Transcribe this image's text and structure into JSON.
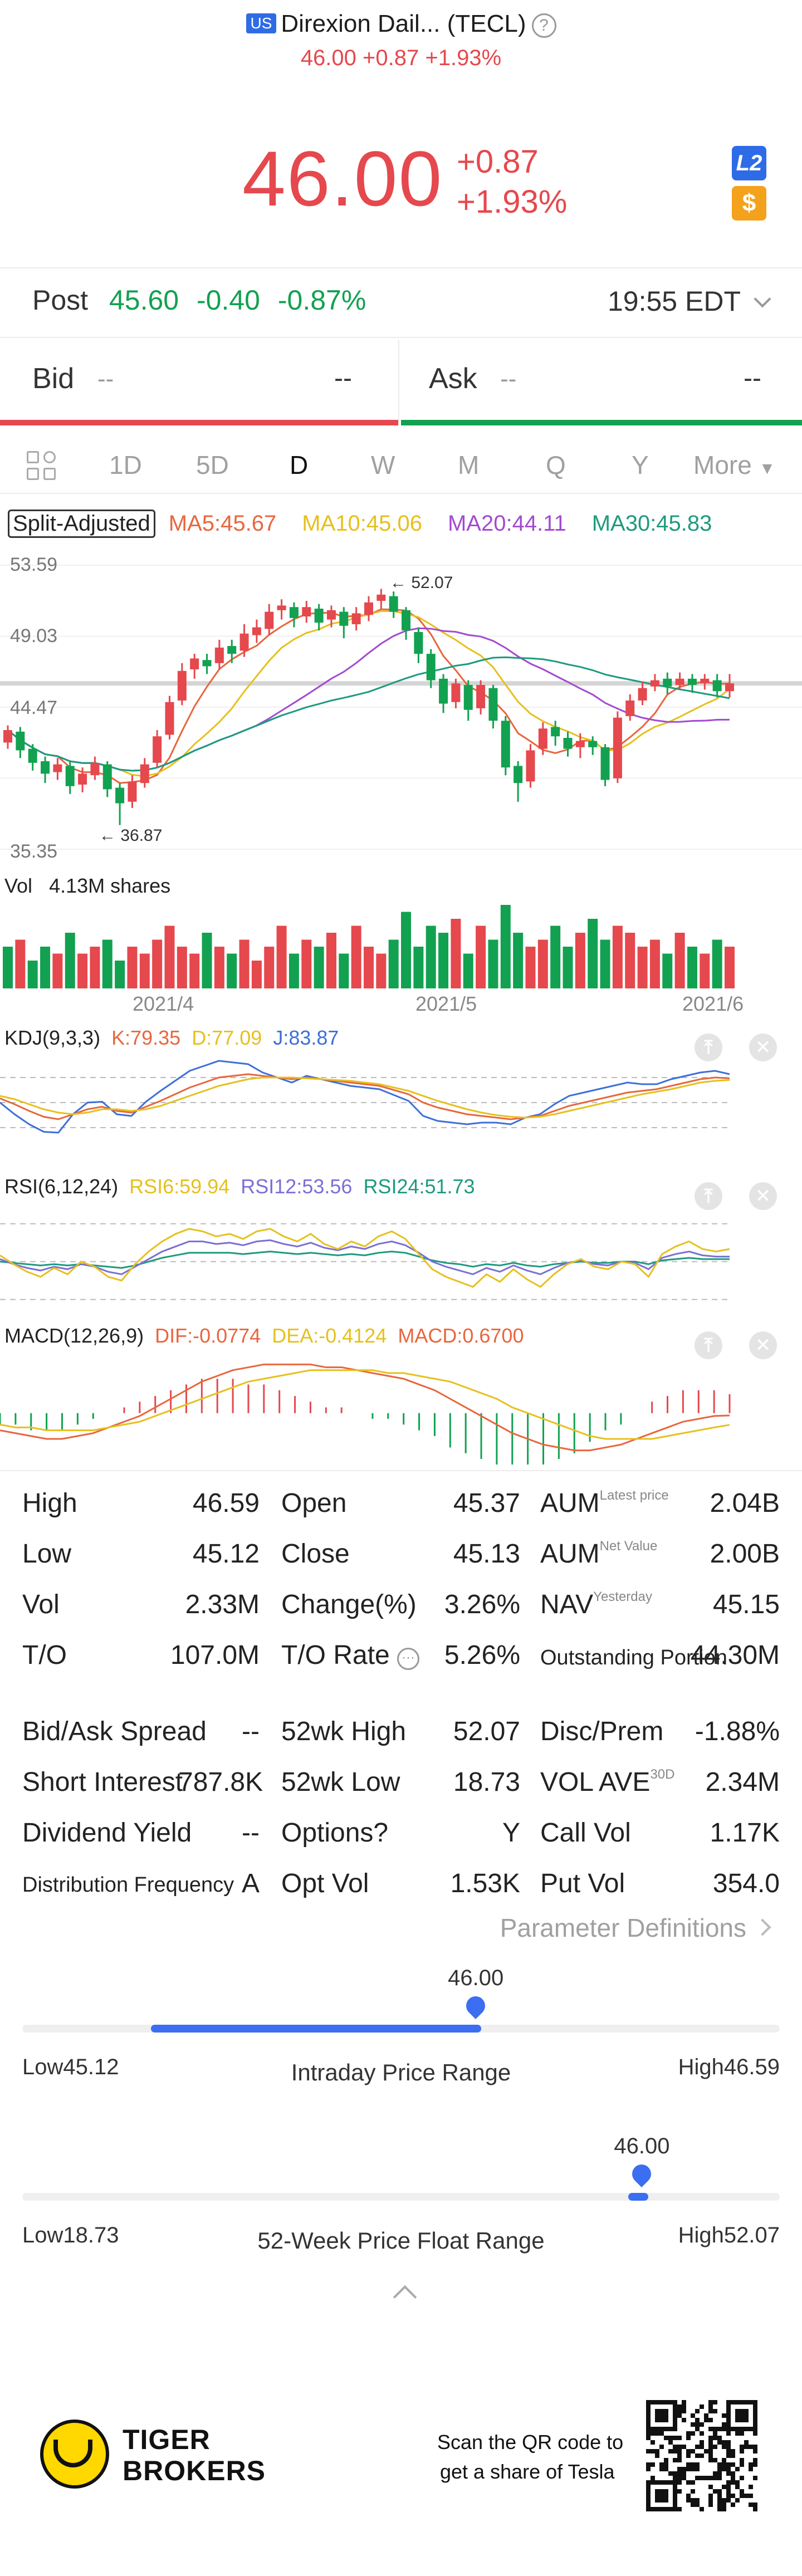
{
  "header": {
    "market_badge": "US",
    "title": "Direxion Dail... (TECL)",
    "help_icon": "question-circle-icon",
    "sub_price": "46.00",
    "sub_change": "+0.87",
    "sub_change_pct": "+1.93%"
  },
  "quote": {
    "price": "46.00",
    "change": "+0.87",
    "change_pct": "+1.93%",
    "l2_badge": "L2",
    "currency_badge": "$"
  },
  "post_market": {
    "label": "Post",
    "price": "45.60",
    "change": "-0.40",
    "change_pct": "-0.87%",
    "time": "19:55 EDT"
  },
  "bid_ask": {
    "bid_label": "Bid",
    "bid_placeholder": "--",
    "bid_value": "--",
    "ask_label": "Ask",
    "ask_placeholder": "--",
    "ask_value": "--"
  },
  "tabs": [
    "1D",
    "5D",
    "D",
    "W",
    "M",
    "Q",
    "Y",
    "More"
  ],
  "active_tab": "D",
  "ma_row": {
    "split_label": "Split-Adjusted",
    "ma5": "MA5:45.67",
    "ma10": "MA10:45.06",
    "ma20": "MA20:44.11",
    "ma30": "MA30:45.83",
    "colors": {
      "ma5": "#e8663d",
      "ma10": "#e6c01d",
      "ma20": "#a24bd0",
      "ma30": "#1d9a7e"
    }
  },
  "chart_data": [
    {
      "type": "candlestick",
      "y_labels": [
        "53.59",
        "49.03",
        "44.47",
        "35.35"
      ],
      "ylim": [
        35.35,
        53.59
      ],
      "high_annotation": "52.07",
      "low_annotation": "36.87",
      "x_labels": [
        "2021/4",
        "2021/5",
        "2021/6"
      ],
      "candles": [
        [
          42.2,
          43.0,
          41.8,
          43.3
        ],
        [
          42.9,
          41.7,
          41.2,
          43.2
        ],
        [
          41.8,
          40.9,
          40.4,
          42.1
        ],
        [
          41.0,
          40.2,
          39.6,
          41.3
        ],
        [
          40.3,
          40.8,
          39.8,
          41.2
        ],
        [
          40.7,
          39.4,
          38.9,
          41.0
        ],
        [
          39.5,
          40.2,
          39.0,
          40.6
        ],
        [
          40.1,
          40.9,
          39.8,
          41.3
        ],
        [
          40.8,
          39.2,
          38.7,
          41.0
        ],
        [
          39.3,
          38.3,
          36.9,
          39.6
        ],
        [
          38.4,
          39.7,
          38.0,
          40.1
        ],
        [
          39.6,
          40.8,
          39.3,
          41.2
        ],
        [
          40.9,
          42.6,
          40.6,
          43.0
        ],
        [
          42.7,
          44.8,
          42.4,
          45.2
        ],
        [
          44.9,
          46.8,
          44.6,
          47.3
        ],
        [
          46.9,
          47.6,
          46.3,
          47.9
        ],
        [
          47.5,
          47.1,
          46.6,
          47.9
        ],
        [
          47.3,
          48.3,
          46.9,
          48.8
        ],
        [
          48.4,
          47.9,
          47.3,
          48.8
        ],
        [
          48.1,
          49.2,
          47.7,
          49.8
        ],
        [
          49.1,
          49.6,
          48.6,
          50.1
        ],
        [
          49.5,
          50.6,
          49.1,
          51.1
        ],
        [
          50.7,
          51.0,
          50.1,
          51.4
        ],
        [
          50.9,
          50.2,
          49.6,
          51.2
        ],
        [
          50.3,
          50.9,
          49.9,
          51.3
        ],
        [
          50.8,
          49.9,
          49.4,
          51.1
        ],
        [
          50.1,
          50.7,
          49.6,
          51.0
        ],
        [
          50.6,
          49.7,
          48.9,
          50.9
        ],
        [
          49.8,
          50.5,
          49.4,
          50.9
        ],
        [
          50.4,
          51.2,
          50.0,
          51.6
        ],
        [
          51.3,
          51.7,
          50.8,
          52.07
        ],
        [
          51.6,
          50.6,
          50.2,
          51.9
        ],
        [
          50.7,
          49.4,
          48.8,
          50.9
        ],
        [
          49.3,
          47.9,
          47.3,
          49.6
        ],
        [
          47.9,
          46.2,
          45.7,
          48.2
        ],
        [
          46.3,
          44.7,
          44.1,
          46.6
        ],
        [
          44.8,
          46.0,
          44.4,
          46.3
        ],
        [
          45.9,
          44.3,
          43.6,
          46.2
        ],
        [
          44.4,
          45.9,
          44.0,
          46.2
        ],
        [
          45.7,
          43.6,
          43.1,
          45.9
        ],
        [
          43.6,
          40.6,
          40.1,
          43.9
        ],
        [
          40.7,
          39.6,
          38.4,
          41.0
        ],
        [
          39.7,
          41.7,
          39.3,
          42.1
        ],
        [
          41.8,
          43.1,
          41.4,
          43.5
        ],
        [
          43.2,
          42.6,
          42.0,
          43.6
        ],
        [
          42.5,
          41.8,
          41.3,
          42.9
        ],
        [
          41.9,
          42.3,
          41.2,
          42.8
        ],
        [
          42.3,
          41.9,
          41.4,
          42.6
        ],
        [
          41.9,
          39.8,
          39.4,
          42.1
        ],
        [
          39.9,
          43.8,
          39.6,
          44.2
        ],
        [
          43.9,
          44.9,
          43.6,
          45.3
        ],
        [
          44.9,
          45.7,
          44.6,
          46.1
        ],
        [
          45.8,
          46.2,
          45.5,
          46.6
        ],
        [
          46.3,
          45.8,
          45.3,
          46.7
        ],
        [
          45.9,
          46.3,
          45.6,
          46.7
        ],
        [
          46.3,
          45.9,
          45.4,
          46.6
        ],
        [
          46.0,
          46.3,
          45.6,
          46.6
        ],
        [
          46.2,
          45.5,
          45.1,
          46.6
        ],
        [
          45.5,
          46.0,
          45.1,
          46.6
        ]
      ]
    },
    {
      "type": "bar",
      "title": "Vol",
      "value_label": "4.13M shares",
      "values": [
        6,
        7,
        4,
        6,
        5,
        8,
        5,
        6,
        7,
        4,
        6,
        5,
        7,
        9,
        6,
        5,
        8,
        6,
        5,
        7,
        4,
        6,
        9,
        5,
        7,
        6,
        8,
        5,
        9,
        6,
        5,
        7,
        11,
        6,
        9,
        8,
        10,
        5,
        9,
        7,
        12,
        8,
        6,
        7,
        9,
        6,
        8,
        10,
        7,
        9,
        8,
        6,
        7,
        5,
        8,
        6,
        5,
        7,
        6
      ],
      "up": [
        0,
        1,
        0,
        0,
        1,
        0,
        1,
        1,
        0,
        0,
        1,
        1,
        1,
        1,
        1,
        1,
        0,
        1,
        0,
        1,
        1,
        1,
        1,
        0,
        1,
        0,
        1,
        0,
        1,
        1,
        1,
        0,
        0,
        0,
        0,
        0,
        1,
        0,
        1,
        0,
        0,
        0,
        1,
        1,
        0,
        0,
        1,
        0,
        0,
        1,
        1,
        1,
        1,
        0,
        1,
        0,
        1,
        0,
        1
      ]
    },
    {
      "type": "line",
      "title": "KDJ(9,3,3)",
      "k_label": "K:79.35",
      "d_label": "D:77.09",
      "j_label": "J:83.87",
      "colors": {
        "k": "#e8663d",
        "d": "#e6c01d",
        "j": "#3e6fd8"
      },
      "k": [
        55,
        48,
        40,
        33,
        30,
        36,
        42,
        45,
        40,
        38,
        45,
        52,
        60,
        68,
        74,
        80,
        82,
        84,
        82,
        80,
        78,
        80,
        78,
        76,
        74,
        72,
        70,
        65,
        60,
        50,
        44,
        40,
        36,
        34,
        32,
        30,
        32,
        34,
        40,
        46,
        50,
        54,
        58,
        62,
        64,
        66,
        70,
        74,
        78,
        80,
        79
      ],
      "d": [
        58,
        54,
        48,
        42,
        38,
        36,
        38,
        42,
        42,
        40,
        42,
        46,
        52,
        58,
        64,
        70,
        74,
        78,
        80,
        80,
        80,
        79,
        78,
        77,
        76,
        74,
        72,
        68,
        64,
        58,
        52,
        47,
        42,
        38,
        35,
        33,
        32,
        33,
        36,
        40,
        44,
        48,
        52,
        56,
        60,
        63,
        66,
        70,
        74,
        76,
        77
      ],
      "j": [
        50,
        36,
        24,
        15,
        14,
        36,
        50,
        51,
        36,
        34,
        51,
        64,
        76,
        88,
        94,
        100,
        98,
        96,
        86,
        80,
        74,
        82,
        78,
        74,
        70,
        68,
        66,
        59,
        52,
        34,
        28,
        26,
        24,
        26,
        26,
        24,
        32,
        36,
        48,
        58,
        62,
        66,
        70,
        74,
        72,
        72,
        78,
        82,
        86,
        88,
        84
      ]
    },
    {
      "type": "line",
      "title": "RSI(6,12,24)",
      "rsi6_label": "RSI6:59.94",
      "rsi12_label": "RSI12:53.56",
      "rsi24_label": "RSI24:51.73",
      "colors": {
        "rsi6": "#e6c01d",
        "rsi12": "#7b6fd6",
        "rsi24": "#1d9a7e"
      },
      "rsi6": [
        55,
        48,
        42,
        38,
        45,
        40,
        50,
        46,
        38,
        35,
        48,
        58,
        66,
        72,
        76,
        74,
        70,
        72,
        68,
        74,
        76,
        70,
        66,
        72,
        64,
        60,
        66,
        62,
        70,
        74,
        68,
        56,
        44,
        38,
        34,
        30,
        40,
        34,
        44,
        36,
        30,
        40,
        48,
        52,
        46,
        44,
        50,
        48,
        38,
        56,
        62,
        66,
        60,
        58,
        60
      ],
      "rsi12": [
        52,
        48,
        45,
        43,
        46,
        44,
        48,
        46,
        42,
        40,
        46,
        52,
        58,
        62,
        66,
        66,
        64,
        65,
        63,
        66,
        67,
        64,
        62,
        65,
        61,
        59,
        62,
        60,
        64,
        66,
        63,
        57,
        50,
        46,
        43,
        40,
        45,
        42,
        47,
        43,
        40,
        45,
        49,
        51,
        48,
        47,
        50,
        49,
        44,
        53,
        56,
        58,
        55,
        54,
        54
      ],
      "rsi24": [
        50,
        49,
        48,
        47,
        48,
        47,
        48,
        47,
        46,
        45,
        47,
        50,
        53,
        55,
        57,
        57,
        57,
        57,
        56,
        57,
        58,
        57,
        56,
        57,
        56,
        55,
        56,
        55,
        57,
        58,
        57,
        54,
        51,
        49,
        48,
        46,
        48,
        47,
        49,
        47,
        46,
        48,
        49,
        50,
        49,
        49,
        50,
        50,
        48,
        51,
        52,
        53,
        52,
        52,
        52
      ]
    },
    {
      "type": "bar+line",
      "title": "MACD(12,26,9)",
      "dif_label": "DIF:-0.0774",
      "dea_label": "DEA:-0.4124",
      "macd_label": "MACD:0.6700",
      "colors": {
        "dif": "#e8663d",
        "dea": "#e6c01d",
        "macd": "#e8663d"
      },
      "dif": [
        -0.6,
        -0.7,
        -0.8,
        -0.9,
        -0.9,
        -0.8,
        -0.7,
        -0.5,
        -0.3,
        -0.1,
        0.2,
        0.5,
        0.8,
        1.1,
        1.3,
        1.5,
        1.6,
        1.7,
        1.7,
        1.7,
        1.7,
        1.6,
        1.6,
        1.5,
        1.4,
        1.3,
        1.2,
        1.0,
        0.8,
        0.5,
        0.2,
        -0.1,
        -0.4,
        -0.7,
        -0.9,
        -1.1,
        -1.2,
        -1.3,
        -1.3,
        -1.2,
        -1.1,
        -0.9,
        -0.7,
        -0.5,
        -0.3,
        -0.2,
        -0.1,
        -0.08
      ],
      "dea": [
        -0.4,
        -0.5,
        -0.5,
        -0.6,
        -0.6,
        -0.6,
        -0.6,
        -0.5,
        -0.4,
        -0.3,
        -0.1,
        0.1,
        0.3,
        0.5,
        0.7,
        0.9,
        1.1,
        1.2,
        1.3,
        1.4,
        1.5,
        1.5,
        1.5,
        1.5,
        1.5,
        1.4,
        1.4,
        1.3,
        1.2,
        1.1,
        0.9,
        0.7,
        0.5,
        0.2,
        0.0,
        -0.2,
        -0.4,
        -0.6,
        -0.8,
        -0.9,
        -0.9,
        -0.9,
        -0.9,
        -0.8,
        -0.7,
        -0.6,
        -0.5,
        -0.41
      ]
    }
  ],
  "kdj_label": "KDJ(9,3,3)",
  "stats": {
    "high_l": "High",
    "high_v": "46.59",
    "open_l": "Open",
    "open_v": "45.37",
    "aum_l": "AUM",
    "aum_sup": "Latest price",
    "aum_v": "2.04B",
    "low_l": "Low",
    "low_v": "45.12",
    "close_l": "Close",
    "close_v": "45.13",
    "aum2_l": "AUM",
    "aum2_sup": "Net Value",
    "aum2_v": "2.00B",
    "vol_l": "Vol",
    "vol_v": "2.33M",
    "chg_l": "Change(%)",
    "chg_v": "3.26%",
    "nav_l": "NAV",
    "nav_sup": "Yesterday",
    "nav_v": "45.15",
    "to_l": "T/O",
    "to_v": "107.0M",
    "torate_l": "T/O Rate",
    "torate_v": "5.26%",
    "outst_l": "Outstanding Portion",
    "outst_v": "44.30M",
    "spread_l": "Bid/Ask Spread",
    "spread_v": "--",
    "wkhigh_l": "52wk High",
    "wkhigh_v": "52.07",
    "disc_l": "Disc/Prem",
    "disc_v": "-1.88%",
    "short_l": "Short Interest",
    "short_v": "787.8K",
    "wklow_l": "52wk Low",
    "wklow_v": "18.73",
    "volave_l": "VOL AVE",
    "volave_sup": "30D",
    "volave_v": "2.34M",
    "div_l": "Dividend Yield",
    "div_v": "--",
    "opt_l": "Options?",
    "opt_v": "Y",
    "callvol_l": "Call Vol",
    "callvol_v": "1.17K",
    "distfreq_l": "Distribution Frequency",
    "distfreq_v": "A",
    "optvol_l": "Opt Vol",
    "optvol_v": "1.53K",
    "putvol_l": "Put Vol",
    "putvol_v": "354.0"
  },
  "param_def": "Parameter Definitions",
  "intraday": {
    "current": "46.00",
    "low_label": "Low45.12",
    "high_label": "High46.59",
    "title": "Intraday Price Range",
    "low": 45.12,
    "high": 46.59,
    "value": 46.0
  },
  "week52": {
    "current": "46.00",
    "low_label": "Low18.73",
    "high_label": "High52.07",
    "title": "52-Week Price Float Range",
    "low": 18.73,
    "high": 52.07,
    "value": 46.0
  },
  "footer": {
    "brand_line1": "TIGER",
    "brand_line2": "BROKERS",
    "scan_line1": "Scan the QR code to",
    "scan_line2": "get a share of Tesla"
  }
}
